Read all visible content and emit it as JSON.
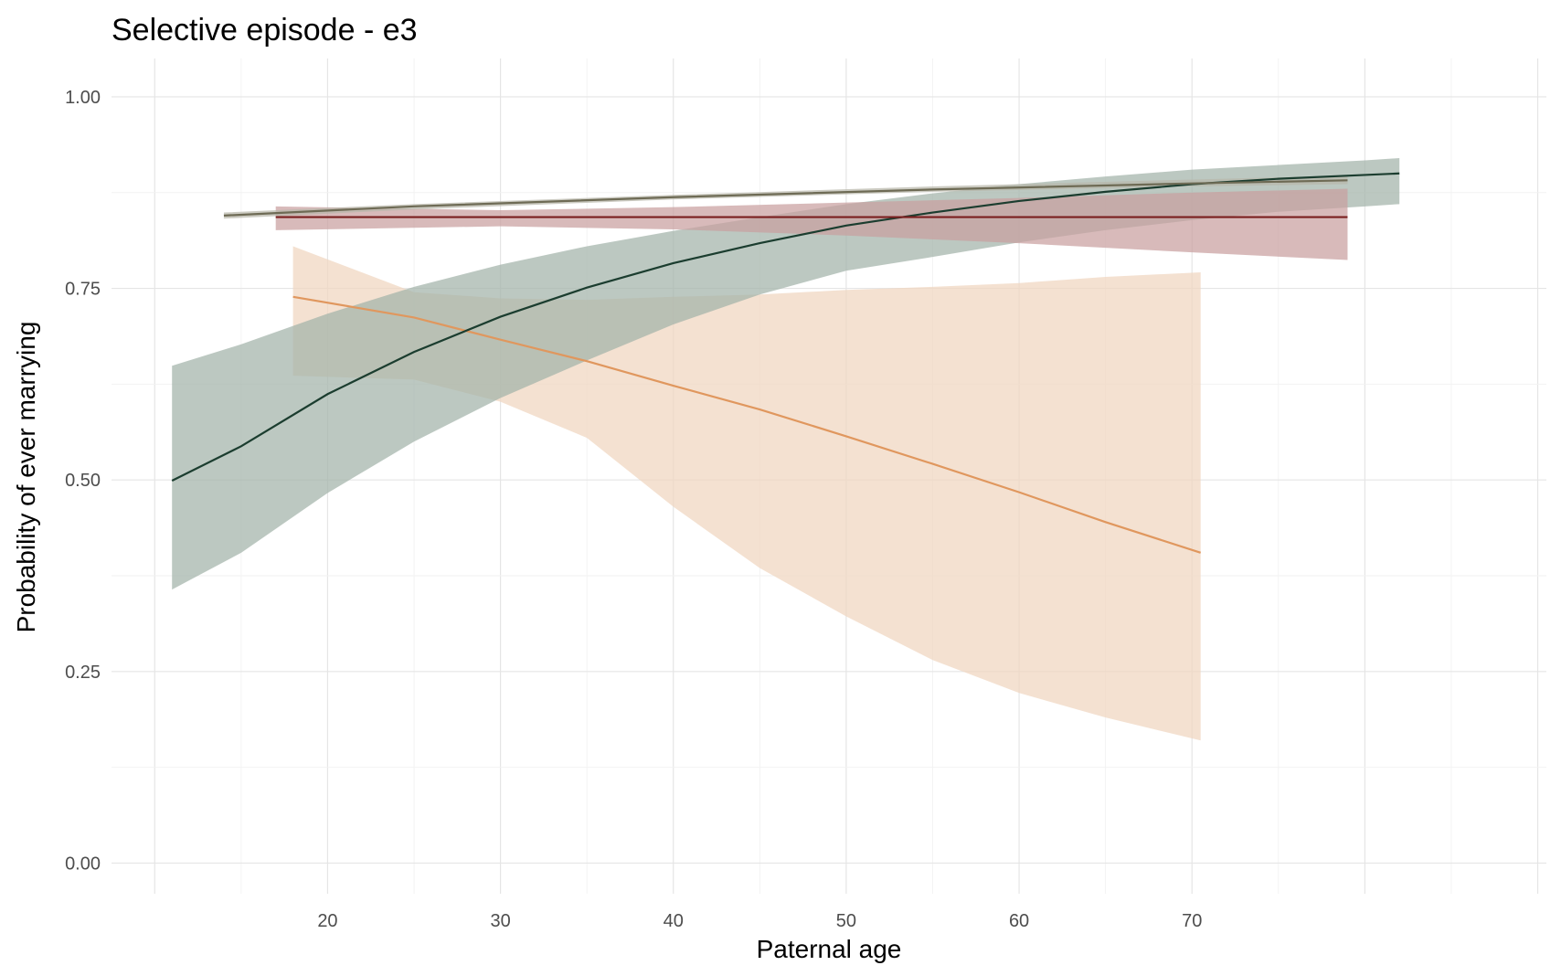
{
  "chart_data": {
    "type": "line",
    "title": "Selective episode - e3",
    "xlabel": "Paternal age",
    "ylabel": "Probability of ever marrying",
    "xlim": [
      7.5,
      90.5
    ],
    "ylim": [
      -0.04,
      1.05
    ],
    "x_ticks": [
      20,
      30,
      40,
      50,
      60,
      70
    ],
    "x_tick_labels": [
      "20",
      "30",
      "40",
      "50",
      "60",
      "70"
    ],
    "y_ticks": [
      0,
      0.25,
      0.5,
      0.75,
      1
    ],
    "y_tick_labels": [
      "0.00",
      "0.25",
      "0.50",
      "0.75",
      "1.00"
    ],
    "grid": true,
    "legend": "none",
    "series": [
      {
        "color": "#e0975e",
        "band_color": "#f0d5bf",
        "points": [
          {
            "x": 18,
            "y": 0.739,
            "lo": 0.636,
            "hi": 0.805
          },
          {
            "x": 25,
            "y": 0.712,
            "lo": 0.631,
            "hi": 0.745
          },
          {
            "x": 30,
            "y": 0.683,
            "lo": 0.602,
            "hi": 0.737
          },
          {
            "x": 35,
            "y": 0.655,
            "lo": 0.555,
            "hi": 0.735
          },
          {
            "x": 40,
            "y": 0.623,
            "lo": 0.465,
            "hi": 0.739
          },
          {
            "x": 45,
            "y": 0.592,
            "lo": 0.385,
            "hi": 0.742
          },
          {
            "x": 50,
            "y": 0.557,
            "lo": 0.322,
            "hi": 0.748
          },
          {
            "x": 55,
            "y": 0.521,
            "lo": 0.265,
            "hi": 0.752
          },
          {
            "x": 60,
            "y": 0.484,
            "lo": 0.222,
            "hi": 0.757
          },
          {
            "x": 65,
            "y": 0.445,
            "lo": 0.19,
            "hi": 0.765
          },
          {
            "x": 70.5,
            "y": 0.405,
            "lo": 0.16,
            "hi": 0.771
          }
        ]
      },
      {
        "color": "#1b3d2f",
        "band_color": "#a2b3a9",
        "points": [
          {
            "x": 11,
            "y": 0.499,
            "lo": 0.357,
            "hi": 0.649
          },
          {
            "x": 15,
            "y": 0.544,
            "lo": 0.405,
            "hi": 0.677
          },
          {
            "x": 20,
            "y": 0.612,
            "lo": 0.483,
            "hi": 0.717
          },
          {
            "x": 25,
            "y": 0.667,
            "lo": 0.55,
            "hi": 0.752
          },
          {
            "x": 30,
            "y": 0.713,
            "lo": 0.607,
            "hi": 0.781
          },
          {
            "x": 35,
            "y": 0.751,
            "lo": 0.656,
            "hi": 0.805
          },
          {
            "x": 40,
            "y": 0.783,
            "lo": 0.703,
            "hi": 0.825
          },
          {
            "x": 45,
            "y": 0.809,
            "lo": 0.742,
            "hi": 0.843
          },
          {
            "x": 50,
            "y": 0.832,
            "lo": 0.773,
            "hi": 0.86
          },
          {
            "x": 55,
            "y": 0.849,
            "lo": 0.791,
            "hi": 0.874
          },
          {
            "x": 60,
            "y": 0.864,
            "lo": 0.81,
            "hi": 0.886
          },
          {
            "x": 65,
            "y": 0.876,
            "lo": 0.826,
            "hi": 0.896
          },
          {
            "x": 70,
            "y": 0.886,
            "lo": 0.839,
            "hi": 0.905
          },
          {
            "x": 75,
            "y": 0.893,
            "lo": 0.85,
            "hi": 0.911
          },
          {
            "x": 80,
            "y": 0.898,
            "lo": 0.857,
            "hi": 0.917
          },
          {
            "x": 82,
            "y": 0.9,
            "lo": 0.86,
            "hi": 0.92
          }
        ]
      },
      {
        "color": "#7a1f1f",
        "band_color": "#c9a0a0",
        "points": [
          {
            "x": 17,
            "y": 0.843,
            "lo": 0.826,
            "hi": 0.857
          },
          {
            "x": 30,
            "y": 0.843,
            "lo": 0.831,
            "hi": 0.852
          },
          {
            "x": 40,
            "y": 0.843,
            "lo": 0.827,
            "hi": 0.856
          },
          {
            "x": 50,
            "y": 0.843,
            "lo": 0.819,
            "hi": 0.862
          },
          {
            "x": 60,
            "y": 0.843,
            "lo": 0.809,
            "hi": 0.868
          },
          {
            "x": 70,
            "y": 0.843,
            "lo": 0.797,
            "hi": 0.875
          },
          {
            "x": 79,
            "y": 0.843,
            "lo": 0.787,
            "hi": 0.88
          }
        ]
      },
      {
        "color": "#6e6b55",
        "band_color": "#b9b7aa",
        "points": [
          {
            "x": 14,
            "y": 0.845,
            "lo": 0.841,
            "hi": 0.849
          },
          {
            "x": 25,
            "y": 0.857,
            "lo": 0.853,
            "hi": 0.86
          },
          {
            "x": 40,
            "y": 0.869,
            "lo": 0.866,
            "hi": 0.872
          },
          {
            "x": 55,
            "y": 0.879,
            "lo": 0.876,
            "hi": 0.883
          },
          {
            "x": 70,
            "y": 0.887,
            "lo": 0.883,
            "hi": 0.892
          },
          {
            "x": 79,
            "y": 0.891,
            "lo": 0.886,
            "hi": 0.897
          }
        ]
      }
    ]
  }
}
